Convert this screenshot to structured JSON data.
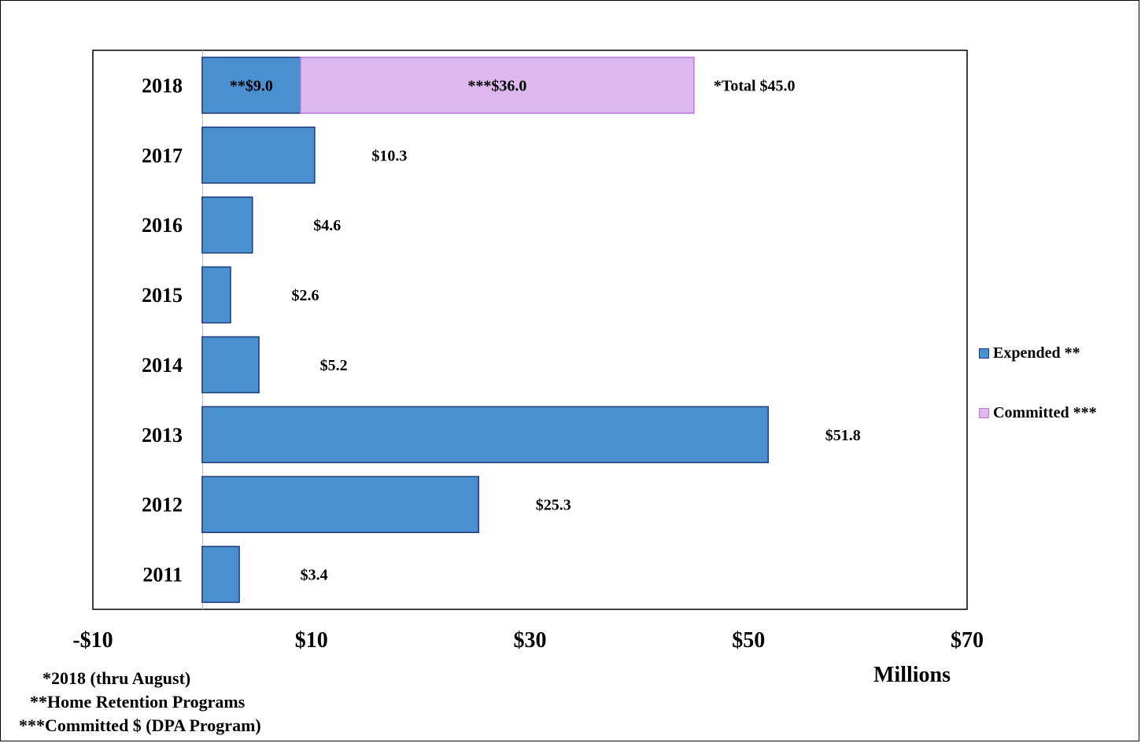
{
  "chart_data": {
    "type": "bar",
    "orientation": "horizontal",
    "stacked": true,
    "categories": [
      "2018",
      "2017",
      "2016",
      "2015",
      "2014",
      "2013",
      "2012",
      "2011"
    ],
    "series": [
      {
        "name": "Expended **",
        "color": "#4A90D0",
        "border": "#1F3A7A",
        "values": [
          9.0,
          10.3,
          4.6,
          2.6,
          5.2,
          51.8,
          25.3,
          3.4
        ]
      },
      {
        "name": "Committed ***",
        "color": "#DDB8EE",
        "border": "#B67AD6",
        "values": [
          36.0,
          0,
          0,
          0,
          0,
          0,
          0,
          0
        ]
      }
    ],
    "data_labels": [
      {
        "category": "2018",
        "series": "Expended **",
        "text": "**$9.0",
        "position": "inside"
      },
      {
        "category": "2018",
        "series": "Committed ***",
        "text": "***$36.0",
        "position": "inside"
      },
      {
        "category": "2018",
        "text": "*Total $45.0",
        "position": "outside"
      },
      {
        "category": "2017",
        "text": "$10.3",
        "position": "outside"
      },
      {
        "category": "2016",
        "text": "$4.6",
        "position": "outside"
      },
      {
        "category": "2015",
        "text": "$2.6",
        "position": "outside"
      },
      {
        "category": "2014",
        "text": "$5.2",
        "position": "outside"
      },
      {
        "category": "2013",
        "text": "$51.8",
        "position": "outside"
      },
      {
        "category": "2012",
        "text": "$25.3",
        "position": "outside"
      },
      {
        "category": "2011",
        "text": "$3.4",
        "position": "outside"
      }
    ],
    "x_ticks": [
      -10,
      10,
      30,
      50,
      70
    ],
    "x_tick_labels": [
      "-$10",
      "$10",
      "$30",
      "$50",
      "$70"
    ],
    "xlim": [
      -10,
      70
    ],
    "xlabel": "Millions",
    "grid": false,
    "legend_position": "right"
  },
  "footnotes": [
    "*2018 (thru August)",
    "**Home Retention Programs",
    "***Committed $ (DPA Program)"
  ]
}
